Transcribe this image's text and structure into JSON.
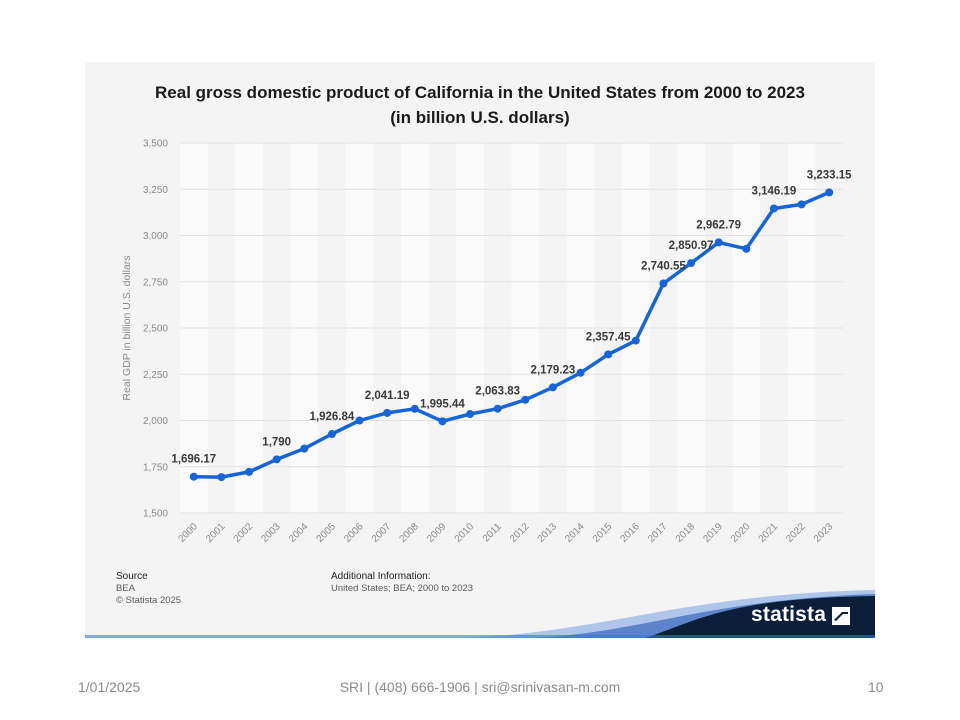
{
  "footer": {
    "date": "1/01/2025",
    "contact": "SRI | (408) 666-1906 | sri@srinivasan-m.com",
    "page_number": "10"
  },
  "card": {
    "source_heading": "Source",
    "source_name": "BEA",
    "copyright": "© Statista 2025",
    "additional_heading": "Additional Information:",
    "additional_text": "United States; BEA; 2000 to 2023",
    "logo": "statista"
  },
  "colors": {
    "line": "#1565d8",
    "card_bg": "#f4f4f4",
    "band": "#fafafa",
    "grid": "#e2e2e2",
    "logo_bg": "#0b1f3a"
  },
  "chart_data": {
    "type": "line",
    "title_line1": "Real gross domestic product of California in the United States from 2000 to 2023",
    "title_line2": "(in billion U.S. dollars)",
    "ylabel": "Real GDP in billion U.S. dollars",
    "xlabel": "",
    "ylim": [
      1500,
      3500
    ],
    "yticks": [
      1500,
      1750,
      2000,
      2250,
      2500,
      2750,
      3000,
      3250,
      3500
    ],
    "ytick_labels": [
      "1,500",
      "1,750",
      "2,000",
      "2,250",
      "2,500",
      "2,750",
      "3,000",
      "3,250",
      "3,500"
    ],
    "grid": true,
    "legend": "none",
    "categories": [
      "2000",
      "2001",
      "2002",
      "2003",
      "2004",
      "2005",
      "2006",
      "2007",
      "2008",
      "2009",
      "2010",
      "2011",
      "2012",
      "2013",
      "2014",
      "2015",
      "2016",
      "2017",
      "2018",
      "2019",
      "2020",
      "2021",
      "2022",
      "2023"
    ],
    "values": [
      1696.17,
      1694,
      1722,
      1790,
      1848,
      1926.84,
      2000,
      2041.19,
      2063,
      1995.44,
      2035,
      2063.83,
      2112,
      2179.23,
      2258,
      2357.45,
      2432,
      2740.55,
      2850.97,
      2962.79,
      2928,
      3146.19,
      3168,
      3233.15
    ],
    "data_labels": [
      {
        "index": 0,
        "text": "1,696.17"
      },
      {
        "index": 3,
        "text": "1,790"
      },
      {
        "index": 5,
        "text": "1,926.84"
      },
      {
        "index": 7,
        "text": "2,041.19"
      },
      {
        "index": 9,
        "text": "1,995.44"
      },
      {
        "index": 11,
        "text": "2,063.83"
      },
      {
        "index": 13,
        "text": "2,179.23"
      },
      {
        "index": 15,
        "text": "2,357.45"
      },
      {
        "index": 17,
        "text": "2,740.55"
      },
      {
        "index": 18,
        "text": "2,850.97"
      },
      {
        "index": 19,
        "text": "2,962.79"
      },
      {
        "index": 21,
        "text": "3,146.19"
      },
      {
        "index": 23,
        "text": "3,233.15"
      }
    ]
  }
}
